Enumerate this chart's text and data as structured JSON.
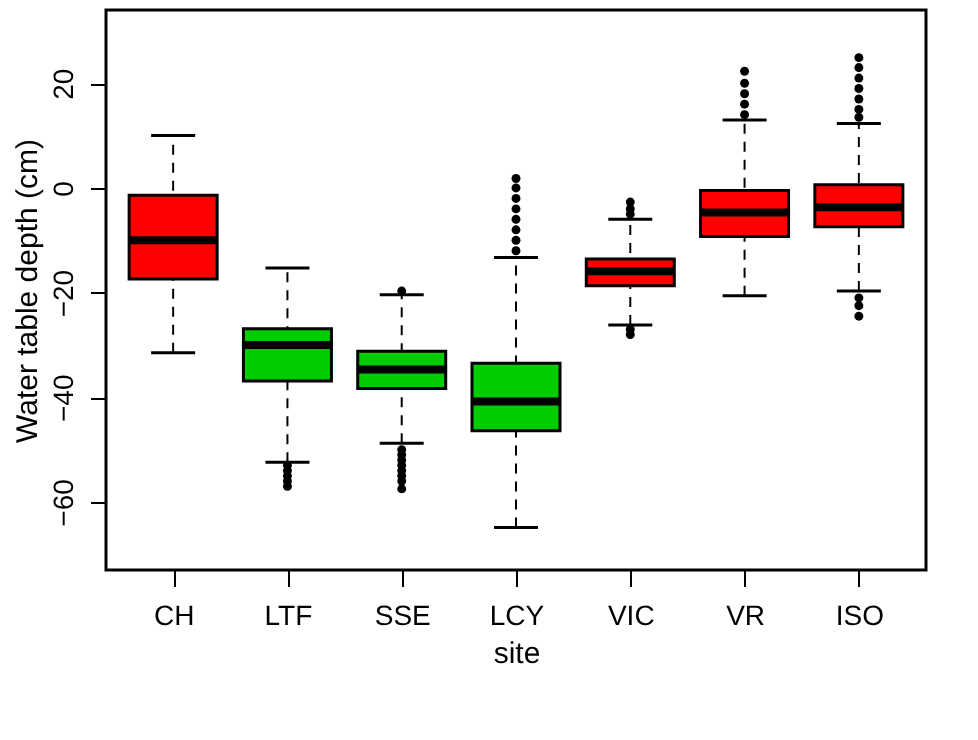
{
  "chart_data": {
    "type": "box",
    "xlabel": "site",
    "ylabel": "Water table depth (cm)",
    "categories": [
      "CH",
      "LTF",
      "SSE",
      "LCY",
      "VIC",
      "VR",
      "ISO"
    ],
    "colors": [
      "#ff0000",
      "#00cc00",
      "#00cc00",
      "#00cc00",
      "#ff0000",
      "#ff0000",
      "#ff0000"
    ],
    "boxes": [
      {
        "low": -31.5,
        "q1": -17.4,
        "median": -10,
        "q3": -1.4,
        "high": 10
      },
      {
        "low": -52.4,
        "q1": -36.9,
        "median": -30,
        "q3": -26.9,
        "high": -15.3,
        "outliers": [
          -53,
          -54,
          -55,
          -56,
          -57
        ]
      },
      {
        "low": -48.8,
        "q1": -38.3,
        "median": -34.7,
        "q3": -31.2,
        "high": -20.4,
        "outliers": [
          -19.7,
          -50,
          -51,
          -52,
          -53,
          -54,
          -55,
          -56,
          -57.5
        ]
      },
      {
        "low": -64.9,
        "q1": -46.4,
        "median": -40.8,
        "q3": -33.5,
        "high": -13.3,
        "outliers": [
          -12,
          -10,
          -8,
          -6,
          -4,
          -2,
          0,
          1.8
        ]
      },
      {
        "low": -26.2,
        "q1": -18.7,
        "median": -15.9,
        "q3": -13.6,
        "high": -6,
        "outliers": [
          -5,
          -4,
          -2.7,
          -27,
          -28
        ]
      },
      {
        "low": -20.6,
        "q1": -9.3,
        "median": -4.7,
        "q3": -0.5,
        "high": 13,
        "outliers": [
          14,
          16,
          18,
          20,
          22.3
        ]
      },
      {
        "low": -19.7,
        "q1": -7.4,
        "median": -3.7,
        "q3": 0.6,
        "high": 12.3,
        "outliers": [
          13.5,
          15,
          17,
          19,
          21,
          23,
          24.9,
          -21,
          -22.5,
          -24.5
        ]
      }
    ],
    "ylim": [
      -73,
      34
    ],
    "yticks": [
      -60,
      -40,
      -20,
      0,
      20
    ],
    "grid": false
  }
}
